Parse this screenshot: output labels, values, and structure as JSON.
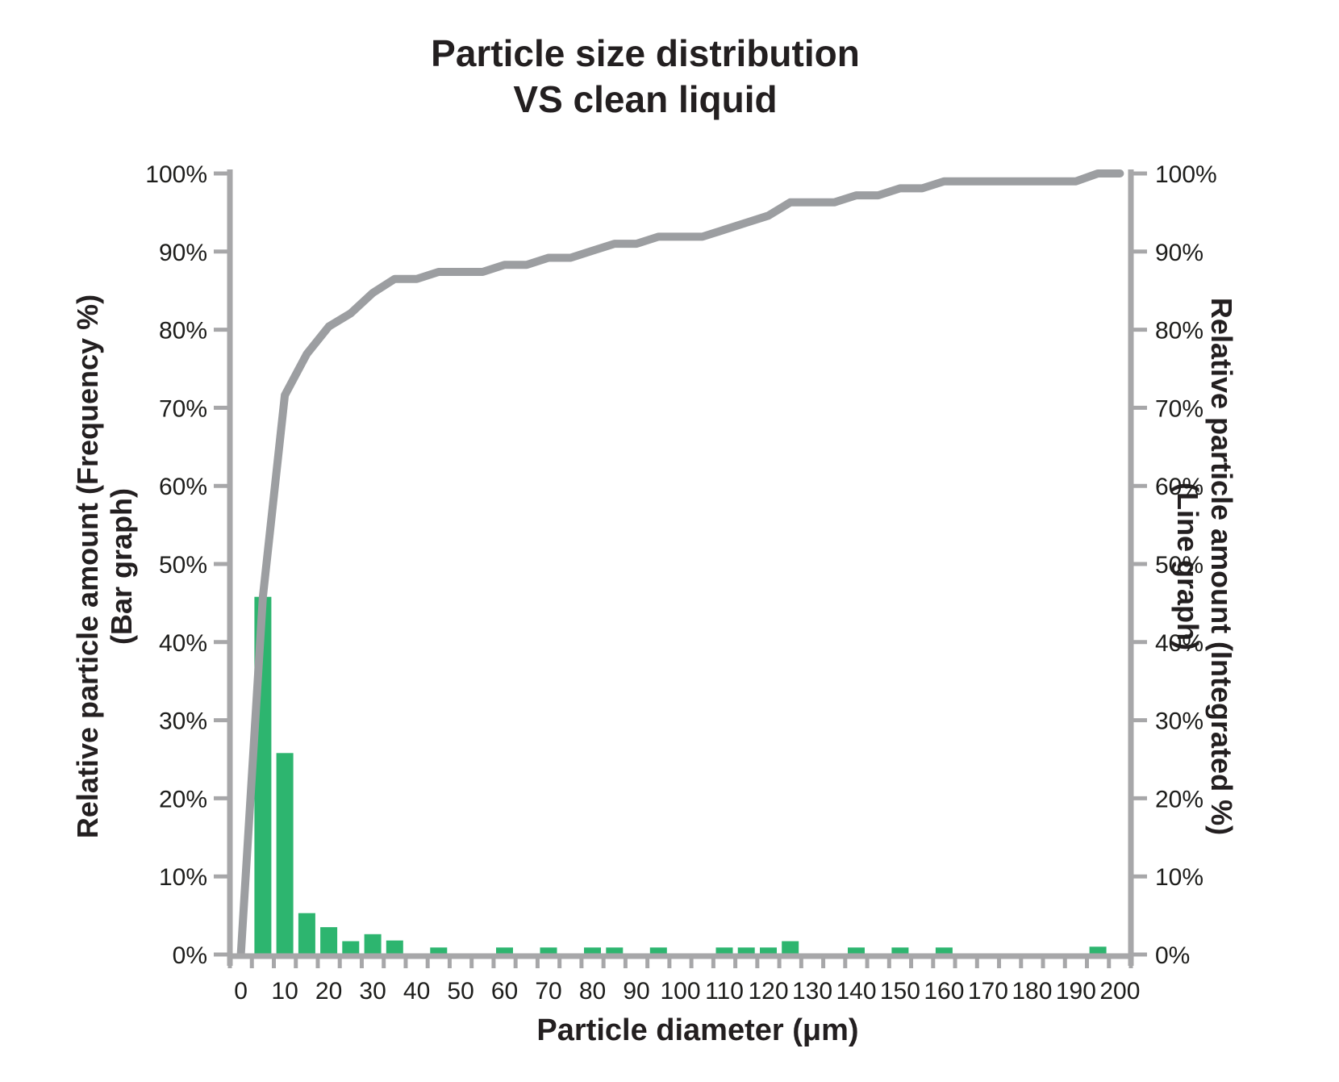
{
  "title": {
    "line1": "Particle size distribution",
    "line2": "VS clean liquid"
  },
  "colors": {
    "bar": "#2db56f",
    "line": "#9c9ea1",
    "axis": "#a7a7a9",
    "tick_text": "#1d1d1b",
    "title_text": "#231f20"
  },
  "chart_data": {
    "type": "bar",
    "title": "Particle size distribution VS clean liquid",
    "title_lines": [
      "Particle size distribution",
      "VS clean liquid"
    ],
    "xlabel": "Particle diameter (μm)",
    "ylabel_left_lines": [
      "Relative particle amount (Frequency %)",
      "(Bar graph)"
    ],
    "ylabel_right_lines": [
      "Relative particle amount (Integrated %)",
      "(Line graph)"
    ],
    "grid": "off",
    "legend": "none",
    "xlim": [
      -2.5,
      202.5
    ],
    "ylim": [
      0,
      100
    ],
    "x_minor_tick_step": 5,
    "x": [
      0,
      5,
      10,
      15,
      20,
      25,
      30,
      35,
      40,
      45,
      50,
      55,
      60,
      65,
      70,
      75,
      80,
      85,
      90,
      95,
      100,
      105,
      110,
      115,
      120,
      125,
      130,
      135,
      140,
      145,
      150,
      155,
      160,
      165,
      170,
      175,
      180,
      185,
      190,
      195,
      200
    ],
    "series": [
      {
        "name": "Relative particle amount (Frequency %) (Bar graph)",
        "type": "bar",
        "values": [
          0,
          45.8,
          25.8,
          5.3,
          3.5,
          1.7,
          2.6,
          1.8,
          0,
          0.9,
          0,
          0,
          0.9,
          0,
          0.9,
          0,
          0.9,
          0.9,
          0,
          0.9,
          0,
          0,
          0.9,
          0.9,
          0.9,
          1.7,
          0,
          0,
          0.9,
          0,
          0.9,
          0,
          0.9,
          0,
          0,
          0,
          0,
          0,
          0,
          1.0,
          0
        ]
      },
      {
        "name": "Relative particle amount (Integrated %) (Line graph)",
        "type": "line",
        "values": [
          0,
          45.8,
          71.6,
          76.9,
          80.4,
          82.1,
          84.7,
          86.5,
          86.5,
          87.4,
          87.4,
          87.4,
          88.3,
          88.3,
          89.2,
          89.2,
          90.1,
          91.0,
          91.0,
          91.9,
          91.9,
          91.9,
          92.8,
          93.7,
          94.6,
          96.3,
          96.3,
          96.3,
          97.2,
          97.2,
          98.1,
          98.1,
          99.0,
          99.0,
          99.0,
          99.0,
          99.0,
          99.0,
          99.0,
          100.0,
          100.0
        ]
      }
    ],
    "y_ticks": [
      0,
      10,
      20,
      30,
      40,
      50,
      60,
      70,
      80,
      90,
      100
    ],
    "y_tick_labels": [
      "0%",
      "10%",
      "20%",
      "30%",
      "40%",
      "50%",
      "60%",
      "70%",
      "80%",
      "90%",
      "100%"
    ],
    "x_tick_values": [
      0,
      10,
      20,
      30,
      40,
      50,
      60,
      70,
      80,
      90,
      100,
      110,
      120,
      130,
      140,
      150,
      160,
      170,
      180,
      190,
      200
    ],
    "x_tick_labels": [
      "0",
      "10",
      "20",
      "30",
      "40",
      "50",
      "60",
      "70",
      "80",
      "90",
      "100",
      "110",
      "120",
      "130",
      "140",
      "150",
      "160",
      "170",
      "180",
      "190",
      "200"
    ]
  }
}
